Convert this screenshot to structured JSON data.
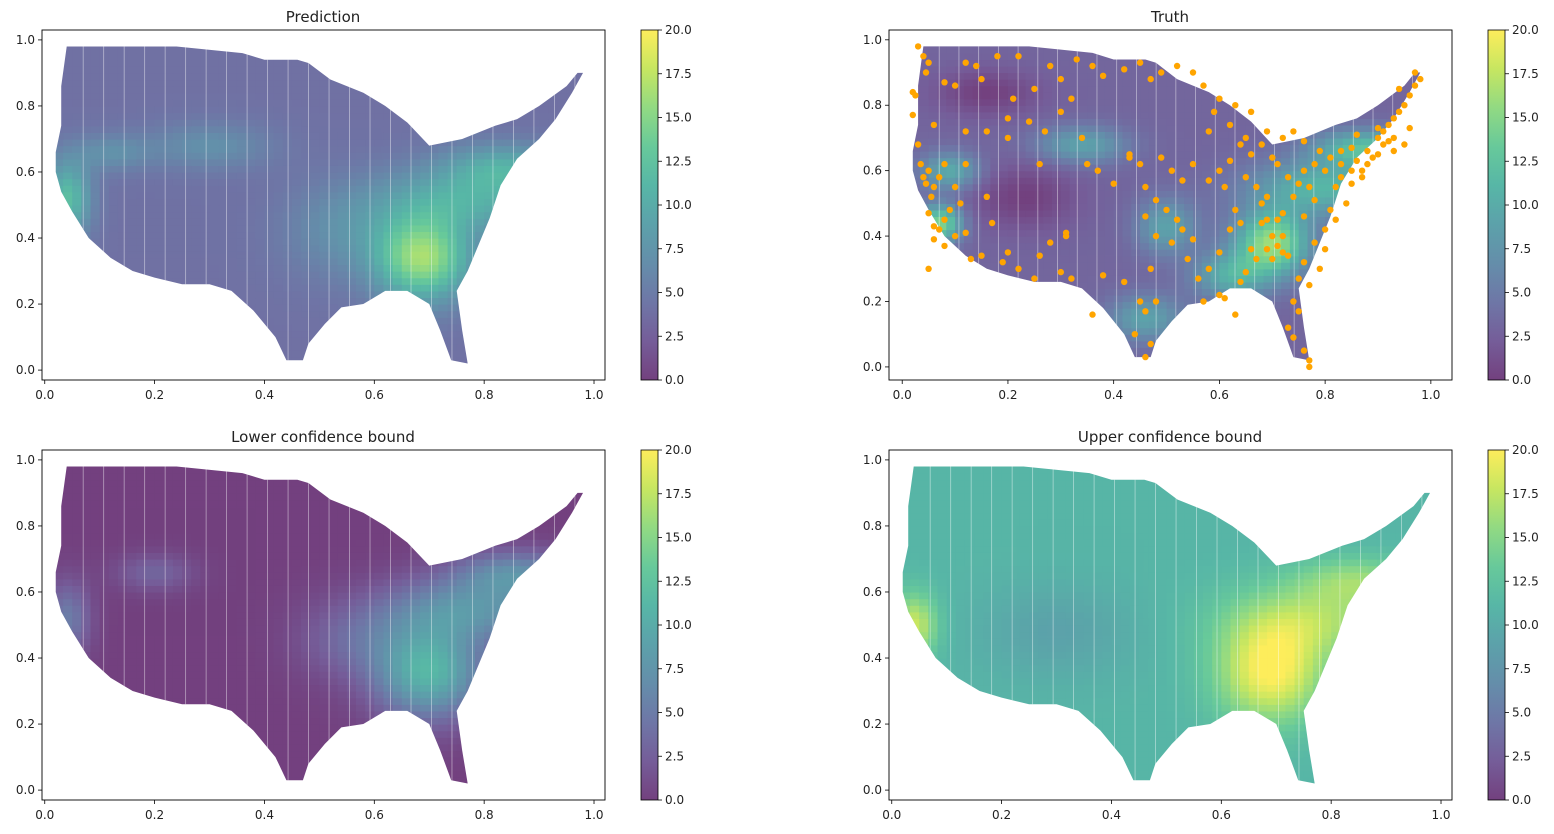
{
  "chart_data": [
    {
      "type": "heatmap",
      "title": "Prediction",
      "xlabel": "",
      "ylabel": "",
      "xlim": [
        -0.005,
        1.02
      ],
      "ylim": [
        -0.03,
        1.03
      ],
      "xticks": [
        0.0,
        0.2,
        0.4,
        0.6,
        0.8,
        1.0
      ],
      "xtick_labels": [
        "0.0",
        "0.2",
        "0.4",
        "0.6",
        "0.8",
        "1.0"
      ],
      "yticks": [
        0.0,
        0.2,
        0.4,
        0.6,
        0.8,
        1.0
      ],
      "ytick_labels": [
        "0.0",
        "0.2",
        "0.4",
        "0.6",
        "0.8",
        "1.0"
      ],
      "colormap": "viridis",
      "alpha": 0.75,
      "clim": [
        0,
        20
      ],
      "colorbar_ticks": [
        0.0,
        2.5,
        5.0,
        7.5,
        10.0,
        12.5,
        15.0,
        17.5,
        20.0
      ],
      "colorbar_labels": [
        "0.0",
        "2.5",
        "5.0",
        "7.5",
        "10.0",
        "12.5",
        "15.0",
        "17.5",
        "20.0"
      ],
      "field": {
        "base": 4,
        "hotspots": [
          {
            "x": 0.69,
            "y": 0.34,
            "sx": 0.06,
            "sy": 0.09,
            "amp": 12
          },
          {
            "x": 0.78,
            "y": 0.52,
            "sx": 0.12,
            "sy": 0.07,
            "amp": 6
          },
          {
            "x": 0.84,
            "y": 0.62,
            "sx": 0.08,
            "sy": 0.05,
            "amp": 5
          },
          {
            "x": 0.04,
            "y": 0.52,
            "sx": 0.03,
            "sy": 0.08,
            "amp": 8
          },
          {
            "x": 0.12,
            "y": 0.66,
            "sx": 0.05,
            "sy": 0.04,
            "amp": 3
          },
          {
            "x": 0.3,
            "y": 0.68,
            "sx": 0.08,
            "sy": 0.05,
            "amp": 3
          },
          {
            "x": 0.55,
            "y": 0.42,
            "sx": 0.08,
            "sy": 0.1,
            "amp": 3
          }
        ]
      },
      "points": []
    },
    {
      "type": "heatmap",
      "title": "Truth",
      "xlabel": "",
      "ylabel": "",
      "xlim": [
        -0.025,
        1.04
      ],
      "ylim": [
        -0.04,
        1.03
      ],
      "xticks": [
        0.0,
        0.2,
        0.4,
        0.6,
        0.8,
        1.0
      ],
      "xtick_labels": [
        "0.0",
        "0.2",
        "0.4",
        "0.6",
        "0.8",
        "1.0"
      ],
      "yticks": [
        0.0,
        0.2,
        0.4,
        0.6,
        0.8,
        1.0
      ],
      "ytick_labels": [
        "0.0",
        "0.2",
        "0.4",
        "0.6",
        "0.8",
        "1.0"
      ],
      "colormap": "viridis",
      "alpha": 0.75,
      "clim": [
        0,
        20
      ],
      "colorbar_ticks": [
        0.0,
        2.5,
        5.0,
        7.5,
        10.0,
        12.5,
        15.0,
        17.5,
        20.0
      ],
      "colorbar_labels": [
        "0.0",
        "2.5",
        "5.0",
        "7.5",
        "10.0",
        "12.5",
        "15.0",
        "17.5",
        "20.0"
      ],
      "field": {
        "base": 3,
        "hotspots": [
          {
            "x": 0.7,
            "y": 0.38,
            "sx": 0.05,
            "sy": 0.07,
            "amp": 13
          },
          {
            "x": 0.8,
            "y": 0.55,
            "sx": 0.1,
            "sy": 0.06,
            "amp": 8
          },
          {
            "x": 0.88,
            "y": 0.67,
            "sx": 0.07,
            "sy": 0.04,
            "amp": 9
          },
          {
            "x": 0.62,
            "y": 0.28,
            "sx": 0.05,
            "sy": 0.05,
            "amp": 7
          },
          {
            "x": 0.07,
            "y": 0.44,
            "sx": 0.03,
            "sy": 0.04,
            "amp": 12
          },
          {
            "x": 0.09,
            "y": 0.6,
            "sx": 0.04,
            "sy": 0.04,
            "amp": 7
          },
          {
            "x": 0.34,
            "y": 0.68,
            "sx": 0.06,
            "sy": 0.04,
            "amp": 6
          },
          {
            "x": 0.5,
            "y": 0.43,
            "sx": 0.04,
            "sy": 0.06,
            "amp": 6
          },
          {
            "x": 0.46,
            "y": 0.15,
            "sx": 0.05,
            "sy": 0.05,
            "amp": 6
          },
          {
            "x": 0.23,
            "y": 0.52,
            "sx": 0.07,
            "sy": 0.07,
            "amp": -3
          },
          {
            "x": 0.16,
            "y": 0.84,
            "sx": 0.07,
            "sy": 0.05,
            "amp": -3
          }
        ]
      },
      "points": [
        [
          0.03,
          0.98
        ],
        [
          0.04,
          0.95
        ],
        [
          0.05,
          0.93
        ],
        [
          0.045,
          0.9
        ],
        [
          0.02,
          0.84
        ],
        [
          0.025,
          0.83
        ],
        [
          0.02,
          0.77
        ],
        [
          0.03,
          0.68
        ],
        [
          0.035,
          0.62
        ],
        [
          0.04,
          0.58
        ],
        [
          0.045,
          0.56
        ],
        [
          0.05,
          0.6
        ],
        [
          0.06,
          0.55
        ],
        [
          0.055,
          0.52
        ],
        [
          0.07,
          0.58
        ],
        [
          0.08,
          0.62
        ],
        [
          0.1,
          0.55
        ],
        [
          0.11,
          0.5
        ],
        [
          0.09,
          0.48
        ],
        [
          0.08,
          0.45
        ],
        [
          0.07,
          0.42
        ],
        [
          0.06,
          0.43
        ],
        [
          0.05,
          0.47
        ],
        [
          0.06,
          0.39
        ],
        [
          0.08,
          0.37
        ],
        [
          0.1,
          0.4
        ],
        [
          0.12,
          0.41
        ],
        [
          0.15,
          0.34
        ],
        [
          0.13,
          0.33
        ],
        [
          0.17,
          0.44
        ],
        [
          0.19,
          0.32
        ],
        [
          0.2,
          0.35
        ],
        [
          0.22,
          0.3
        ],
        [
          0.25,
          0.27
        ],
        [
          0.26,
          0.34
        ],
        [
          0.28,
          0.38
        ],
        [
          0.31,
          0.41
        ],
        [
          0.3,
          0.29
        ],
        [
          0.32,
          0.27
        ],
        [
          0.36,
          0.16
        ],
        [
          0.38,
          0.28
        ],
        [
          0.42,
          0.26
        ],
        [
          0.44,
          0.1
        ],
        [
          0.46,
          0.03
        ],
        [
          0.47,
          0.07
        ],
        [
          0.46,
          0.17
        ],
        [
          0.45,
          0.2
        ],
        [
          0.48,
          0.2
        ],
        [
          0.47,
          0.3
        ],
        [
          0.48,
          0.4
        ],
        [
          0.46,
          0.46
        ],
        [
          0.48,
          0.51
        ],
        [
          0.46,
          0.55
        ],
        [
          0.5,
          0.48
        ],
        [
          0.52,
          0.45
        ],
        [
          0.51,
          0.38
        ],
        [
          0.53,
          0.42
        ],
        [
          0.55,
          0.39
        ],
        [
          0.54,
          0.33
        ],
        [
          0.56,
          0.27
        ],
        [
          0.57,
          0.2
        ],
        [
          0.6,
          0.22
        ],
        [
          0.58,
          0.3
        ],
        [
          0.6,
          0.35
        ],
        [
          0.62,
          0.42
        ],
        [
          0.63,
          0.48
        ],
        [
          0.61,
          0.55
        ],
        [
          0.6,
          0.6
        ],
        [
          0.62,
          0.63
        ],
        [
          0.64,
          0.68
        ],
        [
          0.66,
          0.65
        ],
        [
          0.65,
          0.58
        ],
        [
          0.67,
          0.55
        ],
        [
          0.68,
          0.5
        ],
        [
          0.69,
          0.45
        ],
        [
          0.7,
          0.4
        ],
        [
          0.71,
          0.37
        ],
        [
          0.72,
          0.35
        ],
        [
          0.73,
          0.34
        ],
        [
          0.7,
          0.33
        ],
        [
          0.69,
          0.36
        ],
        [
          0.68,
          0.44
        ],
        [
          0.72,
          0.47
        ],
        [
          0.74,
          0.52
        ],
        [
          0.75,
          0.56
        ],
        [
          0.76,
          0.6
        ],
        [
          0.78,
          0.62
        ],
        [
          0.8,
          0.6
        ],
        [
          0.82,
          0.55
        ],
        [
          0.83,
          0.58
        ],
        [
          0.85,
          0.6
        ],
        [
          0.86,
          0.63
        ],
        [
          0.88,
          0.66
        ],
        [
          0.9,
          0.7
        ],
        [
          0.91,
          0.72
        ],
        [
          0.92,
          0.74
        ],
        [
          0.93,
          0.76
        ],
        [
          0.94,
          0.78
        ],
        [
          0.95,
          0.8
        ],
        [
          0.96,
          0.83
        ],
        [
          0.98,
          0.88
        ],
        [
          0.97,
          0.86
        ],
        [
          0.93,
          0.7
        ],
        [
          0.9,
          0.65
        ],
        [
          0.87,
          0.58
        ],
        [
          0.84,
          0.5
        ],
        [
          0.82,
          0.45
        ],
        [
          0.8,
          0.42
        ],
        [
          0.78,
          0.38
        ],
        [
          0.76,
          0.32
        ],
        [
          0.75,
          0.27
        ],
        [
          0.74,
          0.2
        ],
        [
          0.73,
          0.12
        ],
        [
          0.74,
          0.09
        ],
        [
          0.76,
          0.05
        ],
        [
          0.77,
          0.02
        ],
        [
          0.77,
          0.0
        ],
        [
          0.75,
          0.17
        ],
        [
          0.77,
          0.25
        ],
        [
          0.79,
          0.3
        ],
        [
          0.8,
          0.36
        ],
        [
          0.81,
          0.48
        ],
        [
          0.77,
          0.55
        ],
        [
          0.73,
          0.58
        ],
        [
          0.71,
          0.62
        ],
        [
          0.69,
          0.72
        ],
        [
          0.66,
          0.78
        ],
        [
          0.63,
          0.8
        ],
        [
          0.6,
          0.82
        ],
        [
          0.57,
          0.86
        ],
        [
          0.55,
          0.9
        ],
        [
          0.52,
          0.92
        ],
        [
          0.49,
          0.9
        ],
        [
          0.47,
          0.88
        ],
        [
          0.45,
          0.93
        ],
        [
          0.42,
          0.91
        ],
        [
          0.38,
          0.89
        ],
        [
          0.36,
          0.92
        ],
        [
          0.33,
          0.94
        ],
        [
          0.3,
          0.88
        ],
        [
          0.28,
          0.92
        ],
        [
          0.25,
          0.85
        ],
        [
          0.22,
          0.95
        ],
        [
          0.18,
          0.95
        ],
        [
          0.14,
          0.92
        ],
        [
          0.12,
          0.93
        ],
        [
          0.1,
          0.86
        ],
        [
          0.08,
          0.87
        ],
        [
          0.06,
          0.74
        ],
        [
          0.12,
          0.72
        ],
        [
          0.16,
          0.72
        ],
        [
          0.2,
          0.7
        ],
        [
          0.24,
          0.75
        ],
        [
          0.27,
          0.72
        ],
        [
          0.3,
          0.78
        ],
        [
          0.32,
          0.82
        ],
        [
          0.34,
          0.7
        ],
        [
          0.35,
          0.62
        ],
        [
          0.37,
          0.6
        ],
        [
          0.4,
          0.56
        ],
        [
          0.43,
          0.64
        ],
        [
          0.45,
          0.62
        ],
        [
          0.49,
          0.64
        ],
        [
          0.51,
          0.6
        ],
        [
          0.53,
          0.57
        ],
        [
          0.55,
          0.62
        ],
        [
          0.58,
          0.72
        ],
        [
          0.59,
          0.78
        ],
        [
          0.62,
          0.74
        ],
        [
          0.65,
          0.7
        ],
        [
          0.68,
          0.68
        ],
        [
          0.7,
          0.64
        ],
        [
          0.72,
          0.7
        ],
        [
          0.74,
          0.72
        ],
        [
          0.76,
          0.69
        ],
        [
          0.79,
          0.66
        ],
        [
          0.81,
          0.64
        ],
        [
          0.83,
          0.62
        ],
        [
          0.85,
          0.56
        ],
        [
          0.87,
          0.6
        ],
        [
          0.89,
          0.64
        ],
        [
          0.91,
          0.68
        ],
        [
          0.93,
          0.66
        ],
        [
          0.95,
          0.68
        ],
        [
          0.96,
          0.73
        ],
        [
          0.94,
          0.85
        ],
        [
          0.97,
          0.9
        ],
        [
          0.2,
          0.76
        ],
        [
          0.21,
          0.82
        ],
        [
          0.26,
          0.62
        ],
        [
          0.31,
          0.4
        ],
        [
          0.16,
          0.52
        ],
        [
          0.05,
          0.3
        ],
        [
          0.12,
          0.62
        ],
        [
          0.15,
          0.88
        ],
        [
          0.43,
          0.65
        ],
        [
          0.58,
          0.57
        ],
        [
          0.64,
          0.44
        ],
        [
          0.66,
          0.36
        ],
        [
          0.67,
          0.33
        ],
        [
          0.71,
          0.45
        ],
        [
          0.72,
          0.4
        ],
        [
          0.69,
          0.52
        ],
        [
          0.85,
          0.67
        ],
        [
          0.88,
          0.62
        ],
        [
          0.9,
          0.73
        ],
        [
          0.92,
          0.69
        ],
        [
          0.64,
          0.26
        ],
        [
          0.61,
          0.21
        ],
        [
          0.63,
          0.16
        ],
        [
          0.65,
          0.29
        ],
        [
          0.76,
          0.46
        ],
        [
          0.78,
          0.51
        ],
        [
          0.83,
          0.66
        ],
        [
          0.86,
          0.71
        ]
      ]
    },
    {
      "type": "heatmap",
      "title": "Lower confidence bound",
      "xlabel": "",
      "ylabel": "",
      "xlim": [
        -0.005,
        1.02
      ],
      "ylim": [
        -0.03,
        1.03
      ],
      "xticks": [
        0.0,
        0.2,
        0.4,
        0.6,
        0.8,
        1.0
      ],
      "xtick_labels": [
        "0.0",
        "0.2",
        "0.4",
        "0.6",
        "0.8",
        "1.0"
      ],
      "yticks": [
        0.0,
        0.2,
        0.4,
        0.6,
        0.8,
        1.0
      ],
      "ytick_labels": [
        "0.0",
        "0.2",
        "0.4",
        "0.6",
        "0.8",
        "1.0"
      ],
      "colormap": "viridis",
      "alpha": 0.75,
      "clim": [
        0,
        20
      ],
      "colorbar_ticks": [
        0.0,
        2.5,
        5.0,
        7.5,
        10.0,
        12.5,
        15.0,
        17.5,
        20.0
      ],
      "colorbar_labels": [
        "0.0",
        "2.5",
        "5.0",
        "7.5",
        "10.0",
        "12.5",
        "15.0",
        "17.5",
        "20.0"
      ],
      "field": {
        "base": 0,
        "hotspots": [
          {
            "x": 0.7,
            "y": 0.36,
            "sx": 0.07,
            "sy": 0.1,
            "amp": 11
          },
          {
            "x": 0.78,
            "y": 0.55,
            "sx": 0.12,
            "sy": 0.07,
            "amp": 7
          },
          {
            "x": 0.86,
            "y": 0.66,
            "sx": 0.08,
            "sy": 0.05,
            "amp": 6
          },
          {
            "x": 0.04,
            "y": 0.52,
            "sx": 0.03,
            "sy": 0.08,
            "amp": 5
          },
          {
            "x": 0.2,
            "y": 0.66,
            "sx": 0.05,
            "sy": 0.04,
            "amp": 3
          },
          {
            "x": 0.56,
            "y": 0.45,
            "sx": 0.07,
            "sy": 0.08,
            "amp": 3
          }
        ]
      },
      "points": []
    },
    {
      "type": "heatmap",
      "title": "Upper confidence bound",
      "xlabel": "",
      "ylabel": "",
      "xlim": [
        -0.005,
        1.02
      ],
      "ylim": [
        -0.03,
        1.03
      ],
      "xticks": [
        0.0,
        0.2,
        0.4,
        0.6,
        0.8,
        1.0
      ],
      "xtick_labels": [
        "0.0",
        "0.2",
        "0.4",
        "0.6",
        "0.8",
        "1.0"
      ],
      "yticks": [
        0.0,
        0.2,
        0.4,
        0.6,
        0.8,
        1.0
      ],
      "ytick_labels": [
        "0.0",
        "0.2",
        "0.4",
        "0.6",
        "0.8",
        "1.0"
      ],
      "colormap": "viridis",
      "alpha": 0.75,
      "clim": [
        0,
        20
      ],
      "colorbar_ticks": [
        0.0,
        2.5,
        5.0,
        7.5,
        10.0,
        12.5,
        15.0,
        17.5,
        20.0
      ],
      "colorbar_labels": [
        "0.0",
        "2.5",
        "5.0",
        "7.5",
        "10.0",
        "12.5",
        "15.0",
        "17.5",
        "20.0"
      ],
      "field": {
        "base": 11,
        "hotspots": [
          {
            "x": 0.69,
            "y": 0.36,
            "sx": 0.07,
            "sy": 0.11,
            "amp": 9
          },
          {
            "x": 0.78,
            "y": 0.52,
            "sx": 0.12,
            "sy": 0.08,
            "amp": 5
          },
          {
            "x": 0.85,
            "y": 0.64,
            "sx": 0.08,
            "sy": 0.05,
            "amp": 4
          },
          {
            "x": 0.04,
            "y": 0.5,
            "sx": 0.03,
            "sy": 0.07,
            "amp": 7
          },
          {
            "x": 0.3,
            "y": 0.48,
            "sx": 0.1,
            "sy": 0.1,
            "amp": -2
          }
        ]
      },
      "points": []
    }
  ]
}
